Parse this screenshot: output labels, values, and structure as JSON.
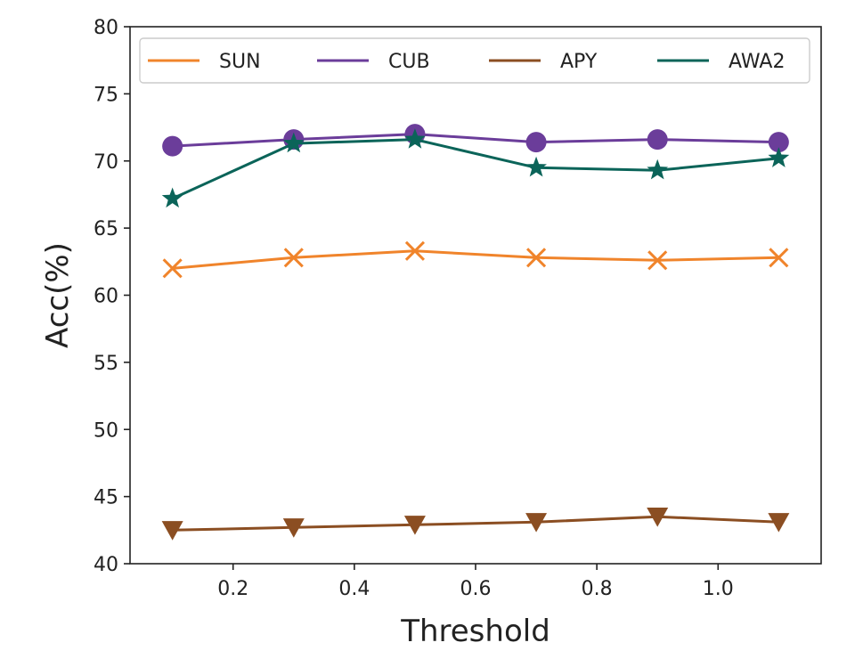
{
  "chart_data": {
    "type": "line",
    "title": "",
    "xlabel": "Threshold",
    "ylabel": "Acc(%)",
    "xlim": [
      0.03,
      1.17
    ],
    "ylim": [
      40,
      80
    ],
    "x": [
      0.1,
      0.3,
      0.5,
      0.7,
      0.9,
      1.1
    ],
    "xticks": [
      0.2,
      0.4,
      0.6,
      0.8,
      1.0
    ],
    "xtick_labels": [
      "0.2",
      "0.4",
      "0.6",
      "0.8",
      "1.0"
    ],
    "yticks": [
      40,
      45,
      50,
      55,
      60,
      65,
      70,
      75,
      80
    ],
    "ytick_labels": [
      "40",
      "45",
      "50",
      "55",
      "60",
      "65",
      "70",
      "75",
      "80"
    ],
    "grid": false,
    "legend_position": "top",
    "series": [
      {
        "name": "SUN",
        "color": "#f0842b",
        "marker": "x",
        "values": [
          62.0,
          62.8,
          63.3,
          62.8,
          62.6,
          62.8
        ]
      },
      {
        "name": "CUB",
        "color": "#6b3d9a",
        "marker": "circle",
        "values": [
          71.1,
          71.6,
          72.0,
          71.4,
          71.6,
          71.4
        ]
      },
      {
        "name": "APY",
        "color": "#8b4e22",
        "marker": "triangle-down",
        "values": [
          42.5,
          42.7,
          42.9,
          43.1,
          43.5,
          43.1
        ]
      },
      {
        "name": "AWA2",
        "color": "#0b6459",
        "marker": "star",
        "values": [
          67.2,
          71.3,
          71.6,
          69.5,
          69.3,
          70.2
        ]
      }
    ]
  }
}
